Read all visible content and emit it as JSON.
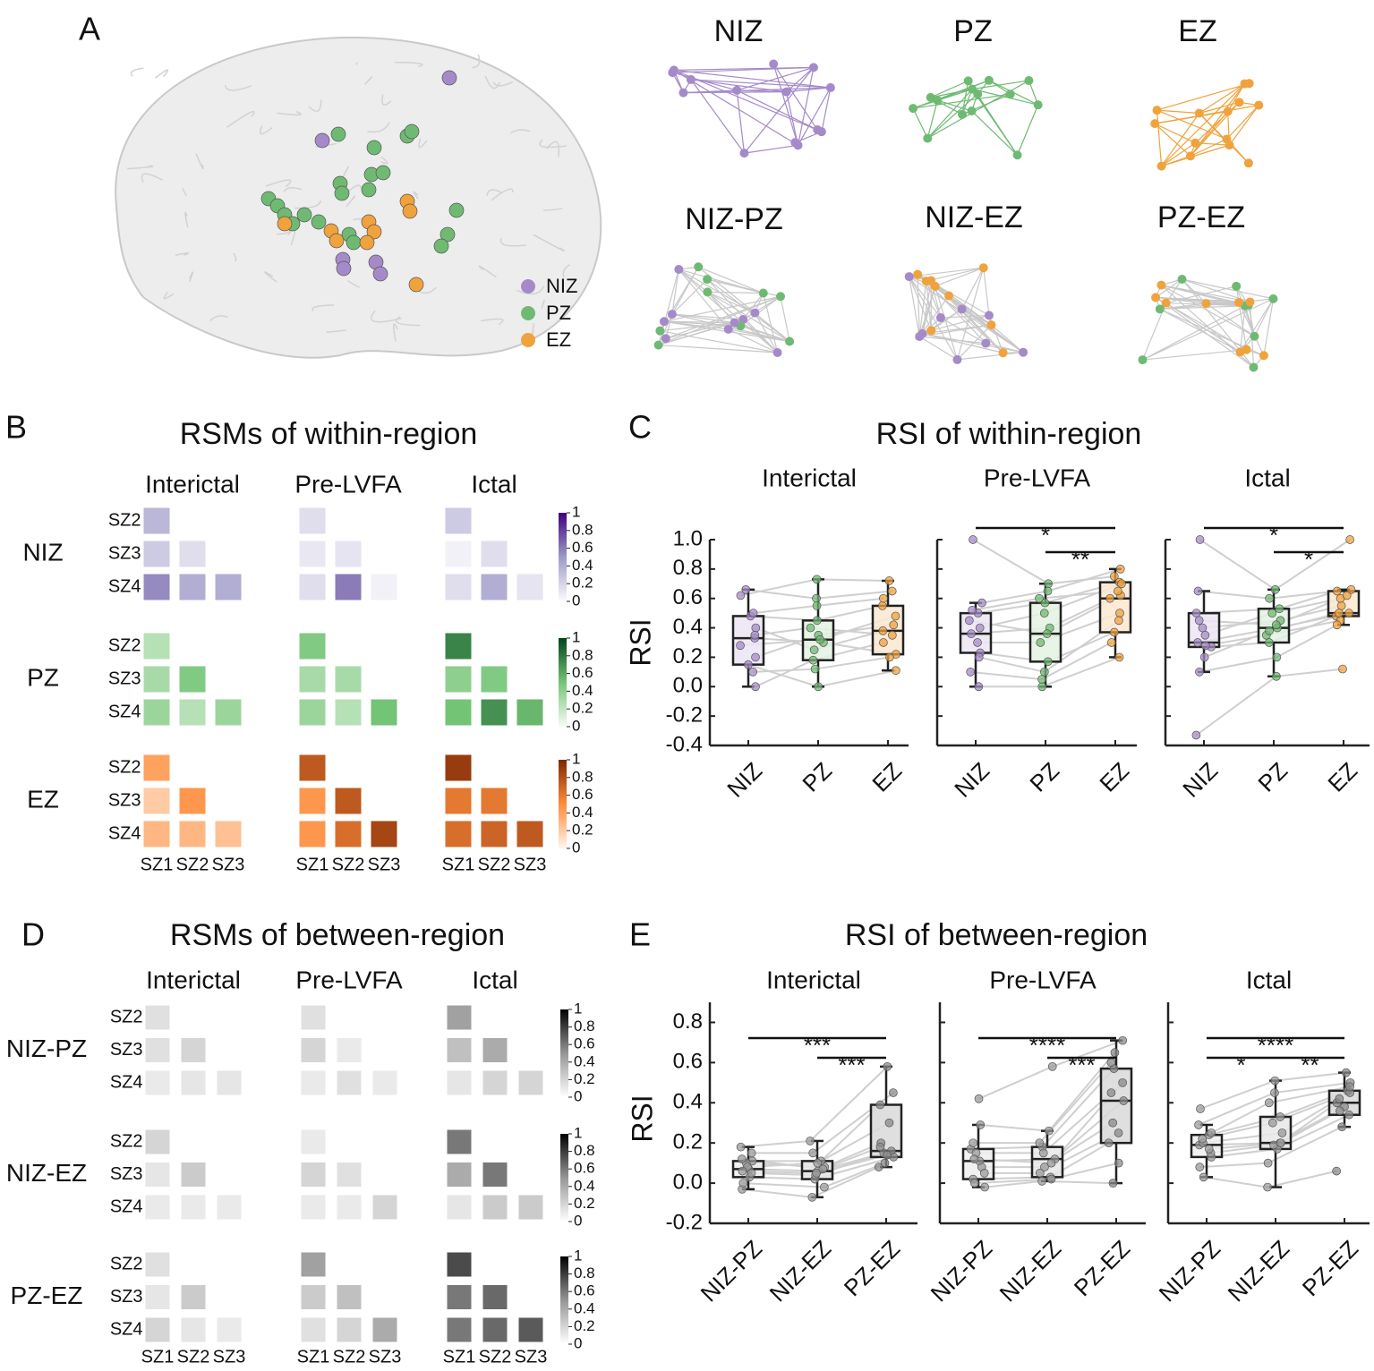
{
  "panel_a": {
    "label": "A",
    "legend": [
      {
        "name": "NIZ",
        "color": "#a58ac9"
      },
      {
        "name": "PZ",
        "color": "#6fba72"
      },
      {
        "name": "EZ",
        "color": "#f0a23c"
      }
    ],
    "networks": [
      "NIZ",
      "PZ",
      "EZ",
      "NIZ-PZ",
      "NIZ-EZ",
      "PZ-EZ"
    ]
  },
  "chart_data": [
    {
      "type": "heatmap",
      "panel": "B",
      "title": "RSMs of within-region",
      "periods": [
        "Interictal",
        "Pre-LVFA",
        "Ictal"
      ],
      "row_groups": [
        "NIZ",
        "PZ",
        "EZ"
      ],
      "rows": [
        "SZ2",
        "SZ3",
        "SZ4"
      ],
      "cols": [
        "SZ1",
        "SZ2",
        "SZ3"
      ],
      "matrices": [
        [
          [
            [
              0.35
            ],
            [
              0.25,
              0.15
            ],
            [
              0.55,
              0.4,
              0.4
            ]
          ],
          [
            [
              0.15
            ],
            [
              0.1,
              0.12
            ],
            [
              0.15,
              0.6,
              0.05
            ]
          ],
          [
            [
              0.25
            ],
            [
              0.05,
              0.15
            ],
            [
              0.15,
              0.4,
              0.12
            ]
          ]
        ],
        [
          [
            [
              0.25
            ],
            [
              0.3,
              0.45
            ],
            [
              0.35,
              0.25,
              0.35
            ]
          ],
          [
            [
              0.45
            ],
            [
              0.3,
              0.3
            ],
            [
              0.35,
              0.25,
              0.5
            ]
          ],
          [
            [
              0.75
            ],
            [
              0.4,
              0.45
            ],
            [
              0.5,
              0.7,
              0.55
            ]
          ]
        ],
        [
          [
            [
              0.4
            ],
            [
              0.2,
              0.45
            ],
            [
              0.3,
              0.3,
              0.25
            ]
          ],
          [
            [
              0.75
            ],
            [
              0.45,
              0.75
            ],
            [
              0.45,
              0.65,
              0.85
            ]
          ],
          [
            [
              0.9
            ],
            [
              0.6,
              0.6
            ],
            [
              0.65,
              0.7,
              0.75
            ]
          ]
        ]
      ],
      "clim": [
        0,
        1
      ],
      "cticks": [
        0,
        0.2,
        0.4,
        0.6,
        0.8,
        1
      ],
      "colormaps": [
        [
          "#fcfbfd",
          "#9e9ac8",
          "#3f007d"
        ],
        [
          "#f7fcf5",
          "#74c476",
          "#00441b"
        ],
        [
          "#fff5eb",
          "#fd8d3c",
          "#7f2704"
        ]
      ]
    },
    {
      "type": "box",
      "panel": "C",
      "title": "RSI of within-region",
      "ylabel": "RSI",
      "ylim": [
        -0.4,
        1.0
      ],
      "yticks": [
        -0.4,
        -0.2,
        {
          "value": 0,
          "label": "0.0"
        },
        0.2,
        0.4,
        0.6,
        0.8,
        {
          "value": 1,
          "label": "1.0"
        }
      ],
      "colors": [
        "#a58ac9",
        "#6fba72",
        "#f0a23c"
      ],
      "fills": [
        "#ece5f4",
        "#e3f2e2",
        "#fce8d0"
      ],
      "subplots": [
        {
          "title": "Interictal",
          "categories": [
            "NIZ",
            "PZ",
            "EZ"
          ],
          "boxes": [
            {
              "low": 0.0,
              "q1": 0.15,
              "median": 0.33,
              "q3": 0.48,
              "high": 0.66
            },
            {
              "low": 0.0,
              "q1": 0.18,
              "median": 0.32,
              "q3": 0.45,
              "high": 0.73
            },
            {
              "low": 0.11,
              "q1": 0.22,
              "median": 0.38,
              "q3": 0.55,
              "high": 0.72
            }
          ],
          "points": [
            [
              0.0,
              0.62,
              0.33,
              0.15,
              0.48,
              0.2,
              0.66,
              0.4,
              0.1,
              0.28,
              0.35,
              0.5
            ],
            [
              0.18,
              0.73,
              0.3,
              0.0,
              0.45,
              0.35,
              0.6,
              0.25,
              0.12,
              0.32,
              0.4,
              0.55
            ],
            [
              0.3,
              0.72,
              0.22,
              0.11,
              0.55,
              0.42,
              0.65,
              0.38,
              0.2,
              0.48,
              0.35,
              0.6
            ]
          ],
          "significance": []
        },
        {
          "title": "Pre-LVFA",
          "categories": [
            "NIZ",
            "PZ",
            "EZ"
          ],
          "boxes": [
            {
              "low": 0.0,
              "q1": 0.23,
              "median": 0.36,
              "q3": 0.5,
              "high": 0.57
            },
            {
              "low": 0.0,
              "q1": 0.17,
              "median": 0.36,
              "q3": 0.57,
              "high": 0.7
            },
            {
              "low": 0.2,
              "q1": 0.37,
              "median": 0.6,
              "q3": 0.71,
              "high": 0.8
            }
          ],
          "points": [
            [
              1.0,
              0.5,
              0.36,
              0.0,
              0.57,
              0.23,
              0.45,
              0.3,
              0.1,
              0.4,
              0.2,
              0.52
            ],
            [
              0.7,
              0.57,
              0.4,
              0.0,
              0.65,
              0.17,
              0.36,
              0.3,
              0.05,
              0.5,
              0.1,
              0.6
            ],
            [
              0.75,
              0.71,
              0.6,
              0.2,
              0.8,
              0.37,
              0.62,
              0.5,
              0.3,
              0.7,
              0.45,
              0.65
            ]
          ],
          "significance": [
            {
              "pair": [
                "NIZ",
                "EZ"
              ],
              "label": "*"
            },
            {
              "pair": [
                "PZ",
                "EZ"
              ],
              "label": "**"
            }
          ]
        },
        {
          "title": "Ictal",
          "categories": [
            "NIZ",
            "PZ",
            "EZ"
          ],
          "boxes": [
            {
              "low": 0.1,
              "q1": 0.27,
              "median": 0.3,
              "q3": 0.5,
              "high": 0.65
            },
            {
              "low": 0.07,
              "q1": 0.3,
              "median": 0.4,
              "q3": 0.53,
              "high": 0.66
            },
            {
              "low": 0.42,
              "q1": 0.48,
              "median": 0.5,
              "q3": 0.65,
              "high": 0.66
            }
          ],
          "points": [
            [
              1.0,
              0.5,
              0.3,
              -0.33,
              0.65,
              0.27,
              0.4,
              0.28,
              0.1,
              0.35,
              0.2,
              0.45
            ],
            [
              0.66,
              0.53,
              0.4,
              0.07,
              0.6,
              0.3,
              0.45,
              0.35,
              0.2,
              0.5,
              0.38,
              0.42
            ],
            [
              1.0,
              0.65,
              0.5,
              0.12,
              0.66,
              0.48,
              0.55,
              0.45,
              0.42,
              0.6,
              0.5,
              0.62
            ]
          ],
          "significance": [
            {
              "pair": [
                "NIZ",
                "EZ"
              ],
              "label": "*"
            },
            {
              "pair": [
                "PZ",
                "EZ"
              ],
              "label": "*"
            }
          ]
        }
      ]
    },
    {
      "type": "heatmap",
      "panel": "D",
      "title": "RSMs of between-region",
      "periods": [
        "Interictal",
        "Pre-LVFA",
        "Ictal"
      ],
      "row_groups": [
        "NIZ-PZ",
        "NIZ-EZ",
        "PZ-EZ"
      ],
      "rows": [
        "SZ2",
        "SZ3",
        "SZ4"
      ],
      "cols": [
        "SZ1",
        "SZ2",
        "SZ3"
      ],
      "matrices": [
        [
          [
            [
              0.15
            ],
            [
              0.15,
              0.2
            ],
            [
              0.1,
              0.12,
              0.12
            ]
          ],
          [
            [
              0.15
            ],
            [
              0.2,
              0.1
            ],
            [
              0.1,
              0.15,
              0.1
            ]
          ],
          [
            [
              0.45
            ],
            [
              0.3,
              0.4
            ],
            [
              0.12,
              0.2,
              0.2
            ]
          ]
        ],
        [
          [
            [
              0.2
            ],
            [
              0.12,
              0.25
            ],
            [
              0.1,
              0.1,
              0.1
            ]
          ],
          [
            [
              0.1
            ],
            [
              0.2,
              0.15
            ],
            [
              0.1,
              0.1,
              0.2
            ]
          ],
          [
            [
              0.6
            ],
            [
              0.4,
              0.6
            ],
            [
              0.12,
              0.25,
              0.25
            ]
          ]
        ],
        [
          [
            [
              0.15
            ],
            [
              0.12,
              0.25
            ],
            [
              0.2,
              0.12,
              0.1
            ]
          ],
          [
            [
              0.45
            ],
            [
              0.25,
              0.3
            ],
            [
              0.15,
              0.2,
              0.4
            ]
          ],
          [
            [
              0.75
            ],
            [
              0.6,
              0.65
            ],
            [
              0.6,
              0.65,
              0.7
            ]
          ]
        ]
      ],
      "clim": [
        0,
        1
      ],
      "cticks": [
        0,
        0.2,
        0.4,
        0.6,
        0.8,
        1
      ],
      "colormaps": [
        [
          "#ffffff",
          "#969696",
          "#000000"
        ],
        [
          "#ffffff",
          "#969696",
          "#000000"
        ],
        [
          "#ffffff",
          "#969696",
          "#000000"
        ]
      ]
    },
    {
      "type": "box",
      "panel": "E",
      "title": "RSI of between-region",
      "ylabel": "RSI",
      "ylim": [
        -0.2,
        0.9
      ],
      "yticks": [
        -0.2,
        {
          "value": 0,
          "label": "0.0"
        },
        0.2,
        0.4,
        0.6,
        0.8
      ],
      "colors": [
        "#9a9a9a",
        "#9a9a9a",
        "#8a8a8a"
      ],
      "fills": [
        "#eeeeee",
        "#e8e8e8",
        "#d9d9d9"
      ],
      "subplots": [
        {
          "title": "Interictal",
          "categories": [
            "NIZ-PZ",
            "NIZ-EZ",
            "PZ-EZ"
          ],
          "boxes": [
            {
              "low": -0.03,
              "q1": 0.03,
              "median": 0.07,
              "q3": 0.11,
              "high": 0.18
            },
            {
              "low": -0.07,
              "q1": 0.02,
              "median": 0.06,
              "q3": 0.11,
              "high": 0.21
            },
            {
              "low": 0.08,
              "q1": 0.13,
              "median": 0.16,
              "q3": 0.39,
              "high": 0.58
            }
          ],
          "points": [
            [
              0.18,
              0.11,
              0.07,
              -0.03,
              0.15,
              0.03,
              0.1,
              0.05,
              0.0,
              0.08,
              0.06,
              0.12
            ],
            [
              0.21,
              0.11,
              0.06,
              -0.07,
              0.15,
              0.02,
              0.08,
              0.04,
              -0.02,
              0.1,
              0.05,
              0.07
            ],
            [
              0.58,
              0.39,
              0.16,
              0.08,
              0.45,
              0.13,
              0.2,
              0.15,
              0.1,
              0.3,
              0.14,
              0.18
            ]
          ],
          "significance": [
            {
              "pair": [
                "NIZ-PZ",
                "PZ-EZ"
              ],
              "label": "***"
            },
            {
              "pair": [
                "NIZ-EZ",
                "PZ-EZ"
              ],
              "label": "***"
            }
          ]
        },
        {
          "title": "Pre-LVFA",
          "categories": [
            "NIZ-PZ",
            "NIZ-EZ",
            "PZ-EZ"
          ],
          "boxes": [
            {
              "low": -0.02,
              "q1": 0.02,
              "median": 0.11,
              "q3": 0.17,
              "high": 0.29
            },
            {
              "low": 0.01,
              "q1": 0.03,
              "median": 0.12,
              "q3": 0.18,
              "high": 0.26
            },
            {
              "low": 0.0,
              "q1": 0.2,
              "median": 0.41,
              "q3": 0.57,
              "high": 0.71
            }
          ],
          "points": [
            [
              0.42,
              0.17,
              0.11,
              -0.02,
              0.29,
              0.02,
              0.15,
              0.08,
              0.0,
              0.12,
              0.05,
              0.2
            ],
            [
              0.58,
              0.18,
              0.12,
              0.01,
              0.26,
              0.03,
              0.15,
              0.08,
              0.02,
              0.1,
              0.05,
              0.2
            ],
            [
              0.71,
              0.57,
              0.41,
              0.0,
              0.65,
              0.2,
              0.45,
              0.3,
              0.1,
              0.5,
              0.25,
              0.6
            ]
          ],
          "significance": [
            {
              "pair": [
                "NIZ-PZ",
                "PZ-EZ"
              ],
              "label": "****"
            },
            {
              "pair": [
                "NIZ-EZ",
                "PZ-EZ"
              ],
              "label": "***"
            }
          ]
        },
        {
          "title": "Ictal",
          "categories": [
            "NIZ-PZ",
            "NIZ-EZ",
            "PZ-EZ"
          ],
          "boxes": [
            {
              "low": 0.03,
              "q1": 0.13,
              "median": 0.19,
              "q3": 0.24,
              "high": 0.29
            },
            {
              "low": -0.02,
              "q1": 0.17,
              "median": 0.2,
              "q3": 0.33,
              "high": 0.51
            },
            {
              "low": 0.28,
              "q1": 0.34,
              "median": 0.4,
              "q3": 0.46,
              "high": 0.55
            }
          ],
          "points": [
            [
              0.37,
              0.24,
              0.19,
              0.03,
              0.29,
              0.13,
              0.2,
              0.15,
              0.08,
              0.22,
              0.17,
              0.25
            ],
            [
              0.51,
              0.33,
              0.2,
              -0.02,
              0.45,
              0.17,
              0.25,
              0.19,
              0.1,
              0.3,
              0.2,
              0.4
            ],
            [
              0.55,
              0.46,
              0.4,
              0.06,
              0.5,
              0.34,
              0.42,
              0.38,
              0.28,
              0.45,
              0.36,
              0.48
            ]
          ],
          "significance": [
            {
              "pair": [
                "NIZ-PZ",
                "PZ-EZ"
              ],
              "label": "****"
            },
            {
              "pair": [
                "NIZ-PZ",
                "NIZ-EZ"
              ],
              "label": "*"
            },
            {
              "pair": [
                "NIZ-EZ",
                "PZ-EZ"
              ],
              "label": "**"
            }
          ]
        }
      ]
    }
  ]
}
